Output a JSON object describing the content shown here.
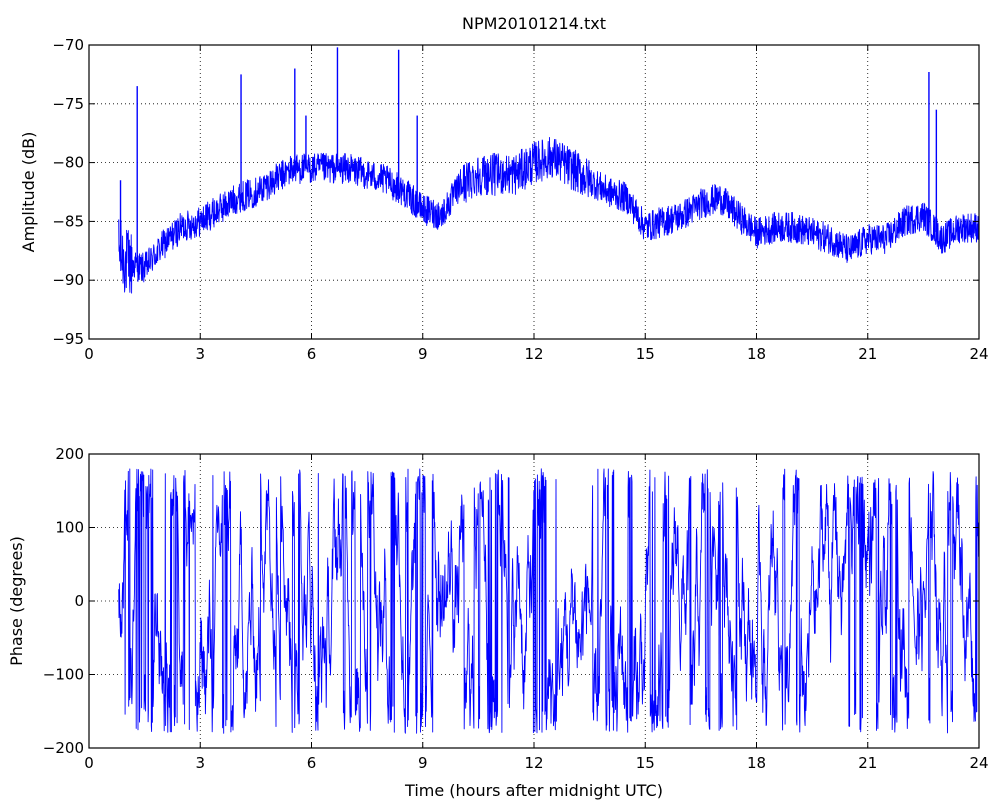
{
  "chart_data": [
    {
      "type": "line",
      "title": "NPM20101214.txt",
      "xlabel": "",
      "ylabel": "Amplitude (dB)",
      "xlim": [
        0,
        24
      ],
      "ylim": [
        -95,
        -70
      ],
      "xticks": [
        0,
        3,
        6,
        9,
        12,
        15,
        18,
        21,
        24
      ],
      "yticks": [
        -95,
        -90,
        -85,
        -80,
        -75,
        -70
      ],
      "grid": true,
      "color": "#0000ff",
      "series": [
        {
          "x": [
            0.8,
            1.0,
            1.5,
            2.0,
            2.5,
            3.0,
            3.5,
            4.0,
            4.5,
            5.0,
            5.5,
            6.0,
            6.5,
            7.0,
            7.5,
            8.0,
            8.5,
            9.0,
            9.5,
            10.0,
            10.5,
            11.0,
            11.5,
            12.0,
            12.5,
            13.0,
            13.5,
            14.0,
            14.5,
            15.0,
            15.5,
            16.0,
            16.5,
            17.0,
            17.5,
            18.0,
            18.5,
            19.0,
            19.5,
            20.0,
            20.5,
            21.0,
            21.5,
            22.0,
            22.5,
            23.0,
            23.5,
            24.0
          ],
          "values": [
            -87.5,
            -88.5,
            -89.0,
            -87.0,
            -85.5,
            -85.0,
            -84.0,
            -83.0,
            -82.5,
            -81.5,
            -80.5,
            -80.5,
            -80.5,
            -80.5,
            -81.0,
            -81.5,
            -82.5,
            -84.0,
            -84.5,
            -82.0,
            -81.0,
            -81.0,
            -81.0,
            -80.0,
            -79.5,
            -80.5,
            -81.5,
            -82.5,
            -83.0,
            -85.5,
            -85.0,
            -84.5,
            -83.5,
            -83.0,
            -84.5,
            -86.0,
            -85.5,
            -85.5,
            -86.0,
            -86.5,
            -87.5,
            -86.5,
            -86.5,
            -85.0,
            -84.5,
            -86.5,
            -85.5,
            -85.5
          ]
        }
      ],
      "spikes": [
        {
          "x": 0.85,
          "y": -81.5
        },
        {
          "x": 1.3,
          "y": -73.5
        },
        {
          "x": 4.1,
          "y": -72.5
        },
        {
          "x": 5.55,
          "y": -72.0
        },
        {
          "x": 5.85,
          "y": -76.0
        },
        {
          "x": 6.7,
          "y": -70.2
        },
        {
          "x": 8.35,
          "y": -70.4
        },
        {
          "x": 8.85,
          "y": -76.0
        },
        {
          "x": 22.65,
          "y": -72.3
        },
        {
          "x": 22.85,
          "y": -75.5
        }
      ]
    },
    {
      "type": "line",
      "title": "",
      "xlabel": "Time (hours after midnight UTC)",
      "ylabel": "Phase (degrees)",
      "xlim": [
        0,
        24
      ],
      "ylim": [
        -200,
        200
      ],
      "xticks": [
        0,
        3,
        6,
        9,
        12,
        15,
        18,
        21,
        24
      ],
      "yticks": [
        -200,
        -100,
        0,
        100,
        200
      ],
      "grid": true,
      "color": "#0000ff",
      "value_range": [
        -180,
        180
      ],
      "x_start": 0.8,
      "x_end": 24
    }
  ]
}
